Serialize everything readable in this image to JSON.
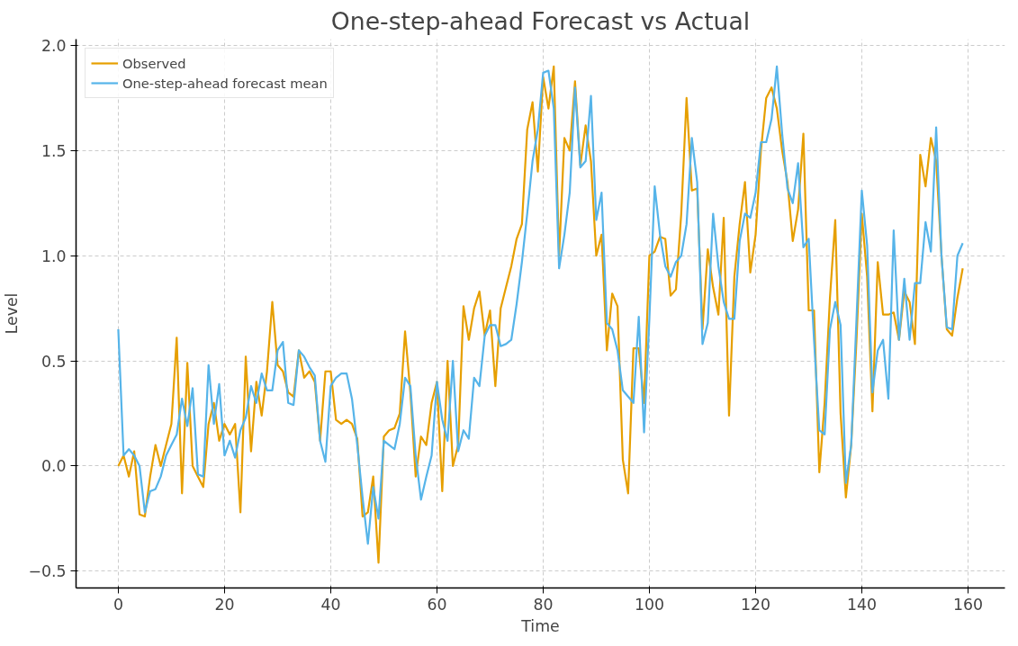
{
  "chart_data": {
    "type": "line",
    "title": "One-step-ahead Forecast vs Actual",
    "xlabel": "Time",
    "ylabel": "Level",
    "x": [
      0,
      1,
      2,
      3,
      4,
      5,
      6,
      7,
      8,
      9,
      10,
      11,
      12,
      13,
      14,
      15,
      16,
      17,
      18,
      19,
      20,
      21,
      22,
      23,
      24,
      25,
      26,
      27,
      28,
      29,
      30,
      31,
      32,
      33,
      34,
      35,
      36,
      37,
      38,
      39,
      40,
      41,
      42,
      43,
      44,
      45,
      46,
      47,
      48,
      49,
      50,
      51,
      52,
      53,
      54,
      55,
      56,
      57,
      58,
      59,
      60,
      61,
      62,
      63,
      64,
      65,
      66,
      67,
      68,
      69,
      70,
      71,
      72,
      73,
      74,
      75,
      76,
      77,
      78,
      79,
      80,
      81,
      82,
      83,
      84,
      85,
      86,
      87,
      88,
      89,
      90,
      91,
      92,
      93,
      94,
      95,
      96,
      97,
      98,
      99,
      100,
      101,
      102,
      103,
      104,
      105,
      106,
      107,
      108,
      109,
      110,
      111,
      112,
      113,
      114,
      115,
      116,
      117,
      118,
      119,
      120,
      121,
      122,
      123,
      124,
      125,
      126,
      127,
      128,
      129,
      130,
      131,
      132,
      133,
      134,
      135,
      136,
      137,
      138,
      139,
      140,
      141,
      142,
      143,
      144,
      145,
      146,
      147,
      148,
      149,
      150,
      151,
      152,
      153,
      154,
      155,
      156,
      157,
      158,
      159
    ],
    "series": [
      {
        "name": "Observed",
        "color": "#e69f00",
        "values": [
          0.0,
          0.05,
          -0.05,
          0.07,
          -0.23,
          -0.24,
          -0.05,
          0.1,
          0.0,
          0.1,
          0.2,
          0.61,
          -0.13,
          0.49,
          0.0,
          -0.05,
          -0.1,
          0.2,
          0.3,
          0.12,
          0.2,
          0.15,
          0.2,
          -0.22,
          0.52,
          0.07,
          0.4,
          0.24,
          0.45,
          0.78,
          0.48,
          0.45,
          0.35,
          0.33,
          0.55,
          0.42,
          0.45,
          0.4,
          0.12,
          0.45,
          0.45,
          0.22,
          0.2,
          0.22,
          0.2,
          0.13,
          -0.24,
          -0.22,
          -0.05,
          -0.46,
          0.14,
          0.17,
          0.18,
          0.25,
          0.64,
          0.35,
          -0.05,
          0.14,
          0.1,
          0.3,
          0.4,
          -0.12,
          0.5,
          0.0,
          0.1,
          0.76,
          0.6,
          0.75,
          0.83,
          0.62,
          0.74,
          0.38,
          0.75,
          0.85,
          0.95,
          1.08,
          1.15,
          1.6,
          1.73,
          1.4,
          1.85,
          1.7,
          1.9,
          1.0,
          1.56,
          1.5,
          1.83,
          1.43,
          1.62,
          1.45,
          1.0,
          1.1,
          0.55,
          0.82,
          0.76,
          0.03,
          -0.13,
          0.56,
          0.56,
          0.3,
          1.0,
          1.02,
          1.09,
          1.08,
          0.81,
          0.84,
          1.2,
          1.75,
          1.31,
          1.32,
          0.65,
          1.03,
          0.85,
          0.72,
          1.18,
          0.24,
          0.9,
          1.15,
          1.35,
          0.92,
          1.1,
          1.5,
          1.75,
          1.8,
          1.7,
          1.5,
          1.35,
          1.07,
          1.22,
          1.58,
          0.74,
          0.74,
          -0.03,
          0.3,
          0.8,
          1.17,
          0.25,
          -0.15,
          0.1,
          0.6,
          1.2,
          0.9,
          0.26,
          0.97,
          0.72,
          0.72,
          0.73,
          0.6,
          0.83,
          0.78,
          0.58,
          1.48,
          1.33,
          1.56,
          1.45,
          1.0,
          0.65,
          0.62,
          0.8,
          0.94
        ]
      },
      {
        "name": "One-step-ahead forecast mean",
        "color": "#56b4e9",
        "values": [
          0.65,
          0.05,
          0.08,
          0.05,
          0.0,
          -0.22,
          -0.12,
          -0.11,
          -0.05,
          0.05,
          0.1,
          0.15,
          0.32,
          0.19,
          0.37,
          -0.04,
          -0.05,
          0.48,
          0.2,
          0.39,
          0.05,
          0.12,
          0.04,
          0.17,
          0.23,
          0.38,
          0.3,
          0.44,
          0.36,
          0.36,
          0.55,
          0.59,
          0.3,
          0.29,
          0.55,
          0.52,
          0.47,
          0.43,
          0.12,
          0.02,
          0.38,
          0.42,
          0.44,
          0.44,
          0.32,
          0.1,
          -0.15,
          -0.37,
          -0.1,
          -0.25,
          0.12,
          0.1,
          0.08,
          0.2,
          0.42,
          0.38,
          0.05,
          -0.16,
          -0.05,
          0.05,
          0.4,
          0.22,
          0.12,
          0.5,
          0.07,
          0.17,
          0.13,
          0.42,
          0.38,
          0.62,
          0.67,
          0.67,
          0.57,
          0.58,
          0.6,
          0.77,
          0.97,
          1.2,
          1.45,
          1.6,
          1.87,
          1.88,
          1.7,
          0.94,
          1.1,
          1.3,
          1.8,
          1.42,
          1.45,
          1.76,
          1.17,
          1.3,
          0.68,
          0.65,
          0.55,
          0.36,
          0.33,
          0.3,
          0.71,
          0.16,
          0.7,
          1.33,
          1.1,
          0.95,
          0.9,
          0.97,
          1.0,
          1.15,
          1.56,
          1.35,
          0.58,
          0.68,
          1.2,
          0.95,
          0.78,
          0.7,
          0.7,
          1.07,
          1.2,
          1.18,
          1.3,
          1.54,
          1.54,
          1.65,
          1.9,
          1.58,
          1.32,
          1.25,
          1.44,
          1.04,
          1.08,
          0.6,
          0.17,
          0.15,
          0.65,
          0.78,
          0.67,
          -0.08,
          0.1,
          0.7,
          1.31,
          1.05,
          0.35,
          0.55,
          0.6,
          0.32,
          1.12,
          0.6,
          0.89,
          0.6,
          0.87,
          0.87,
          1.16,
          1.02,
          1.61,
          1.0,
          0.66,
          0.65,
          1.0,
          1.06
        ]
      }
    ],
    "xlim": [
      -7.95,
      166.95
    ],
    "ylim": [
      -0.58,
      2.03
    ],
    "xticks": [
      0,
      20,
      40,
      60,
      80,
      100,
      120,
      140,
      160
    ],
    "yticks": [
      {
        "value": -0.5,
        "label": "−0.5"
      },
      {
        "value": 0,
        "label": "0.0"
      },
      0.5,
      {
        "value": 1,
        "label": "1.0"
      },
      1.5,
      {
        "value": 2,
        "label": "2.0"
      }
    ],
    "grid": true,
    "legend": "top left",
    "line_style": "solid",
    "marker": "none"
  }
}
